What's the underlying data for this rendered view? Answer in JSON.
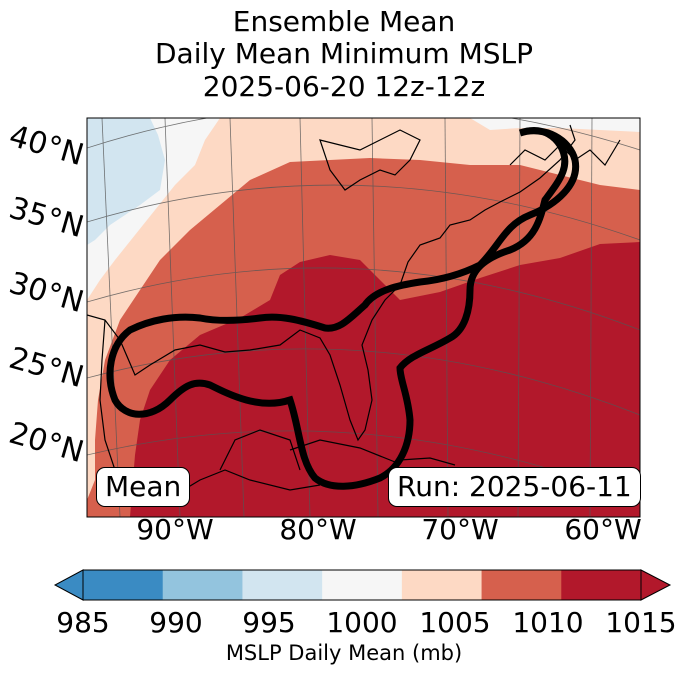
{
  "title_lines": [
    "Ensemble Mean",
    "Daily Mean Minimum MSLP",
    "2025-06-20 12z-12z"
  ],
  "lat_labels": [
    "40°N",
    "35°N",
    "30°N",
    "25°N",
    "20°N"
  ],
  "lon_labels": [
    "90°W",
    "80°W",
    "70°W",
    "60°W"
  ],
  "badges": {
    "left": "Mean",
    "right": "Run: 2025-06-11"
  },
  "colorbar": {
    "ticks": [
      "985",
      "990",
      "995",
      "1000",
      "1005",
      "1010",
      "1015"
    ],
    "label": "MSLP Daily Mean (mb)",
    "colors": [
      "#3a8bc3",
      "#93c4de",
      "#d2e5f0",
      "#f6f6f6",
      "#fdd9c4",
      "#d6604d",
      "#b2182b"
    ]
  },
  "map_colors": {
    "blue": "#d2e5f0",
    "white": "#f6f6f6",
    "light": "#fdd9c4",
    "mid": "#d6604d",
    "dark": "#b2182b",
    "contour": "#000000"
  }
}
